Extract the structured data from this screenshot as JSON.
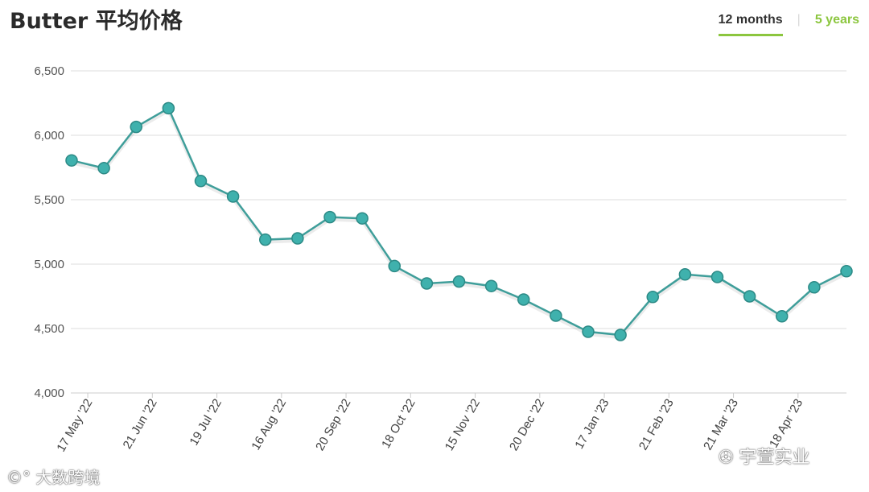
{
  "header": {
    "title": "Butter 平均价格",
    "tabs": [
      {
        "label": "12 months",
        "active": true
      },
      {
        "label": "5 years",
        "active": false
      }
    ],
    "separator": "|"
  },
  "colors": {
    "line": "#3f9e9a",
    "point": "#3fb1ad",
    "grid": "#dddddd",
    "tab_accent": "#8cc63f"
  },
  "watermarks": {
    "left": "大数跨境",
    "right": "宇萱实业"
  },
  "chart_data": {
    "type": "line",
    "title": "",
    "xlabel": "",
    "ylabel": "",
    "ylim": [
      4000,
      6500
    ],
    "yticks": [
      4000,
      4500,
      5000,
      5500,
      6000,
      6500
    ],
    "ytick_labels": [
      "4,000",
      "4,500",
      "5,000",
      "5,500",
      "6,000",
      "6,500"
    ],
    "grid": true,
    "legend": "none",
    "x_labels": [
      "17 May '22",
      "21 Jun '22",
      "19 Jul '22",
      "16 Aug '22",
      "20 Sep '22",
      "18 Oct '22",
      "15 Nov '22",
      "20 Dec '22",
      "17 Jan '23",
      "21 Feb '23",
      "21 Mar '23",
      "18 Apr '23"
    ],
    "x_label_positions": [
      0.5,
      2.5,
      4.5,
      6.5,
      8.5,
      10.5,
      12.5,
      14.5,
      16.5,
      18.5,
      20.5,
      22.5
    ],
    "series": [
      {
        "values": [
          5805,
          5745,
          6065,
          6210,
          5645,
          5525,
          5190,
          5200,
          5365,
          5355,
          4985,
          4850,
          4865,
          4830,
          4725,
          4600,
          4475,
          4450,
          4745,
          4920,
          4900,
          4750,
          4595,
          4820,
          4945
        ]
      }
    ]
  }
}
